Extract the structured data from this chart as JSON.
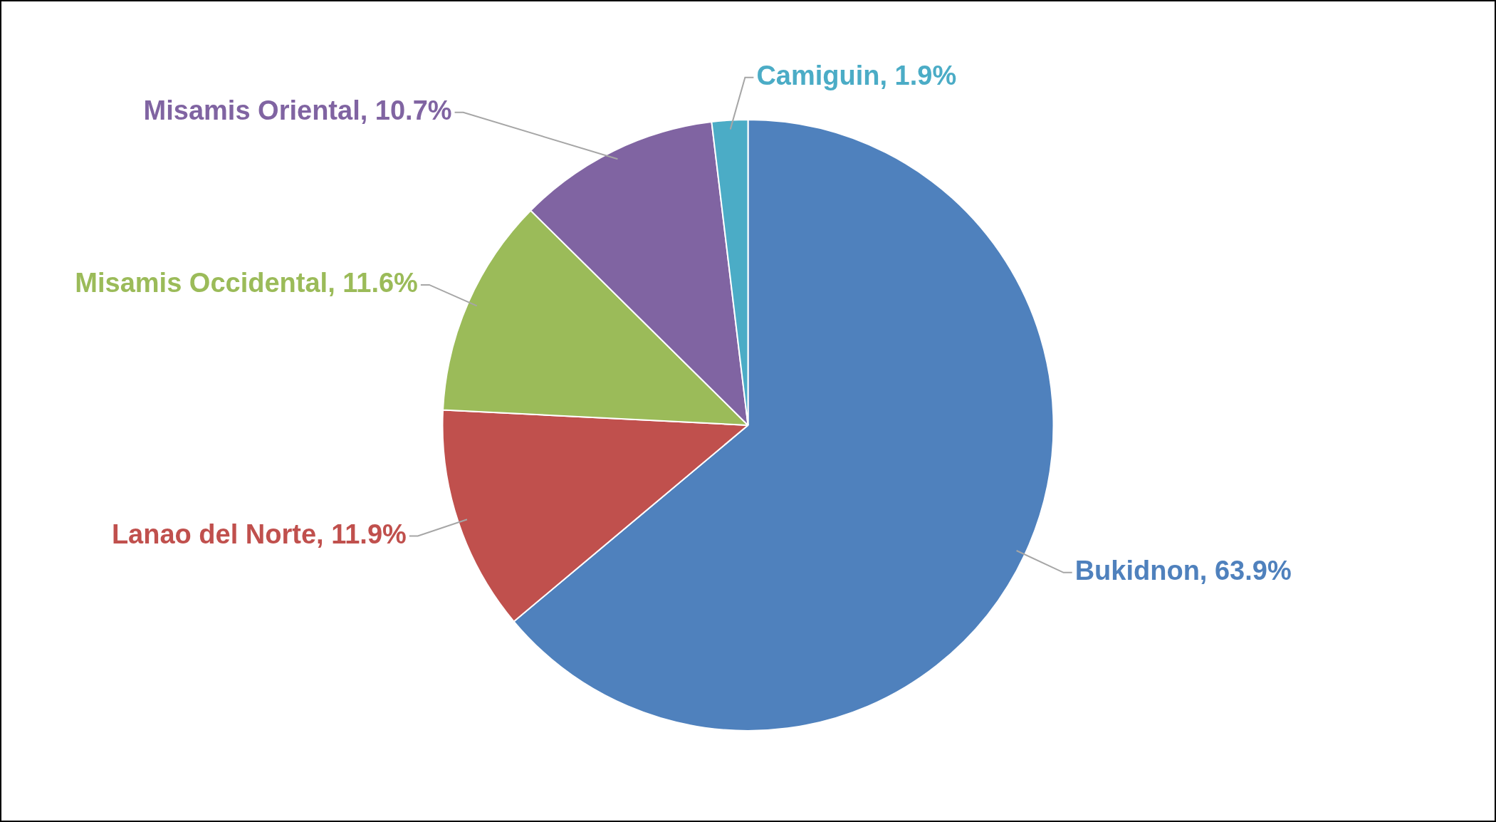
{
  "chart_data": {
    "type": "pie",
    "categories": [
      "Bukidnon",
      "Lanao del Norte",
      "Misamis Occidental",
      "Misamis Oriental",
      "Camiguin"
    ],
    "values": [
      63.9,
      11.9,
      11.6,
      10.7,
      1.9
    ],
    "value_labels": [
      "63.9%",
      "11.9%",
      "11.6%",
      "10.7%",
      "1.9%"
    ],
    "colors": [
      "#4f81bd",
      "#c0504d",
      "#9bbb59",
      "#8064a2",
      "#4bacc6"
    ],
    "legend": false
  }
}
